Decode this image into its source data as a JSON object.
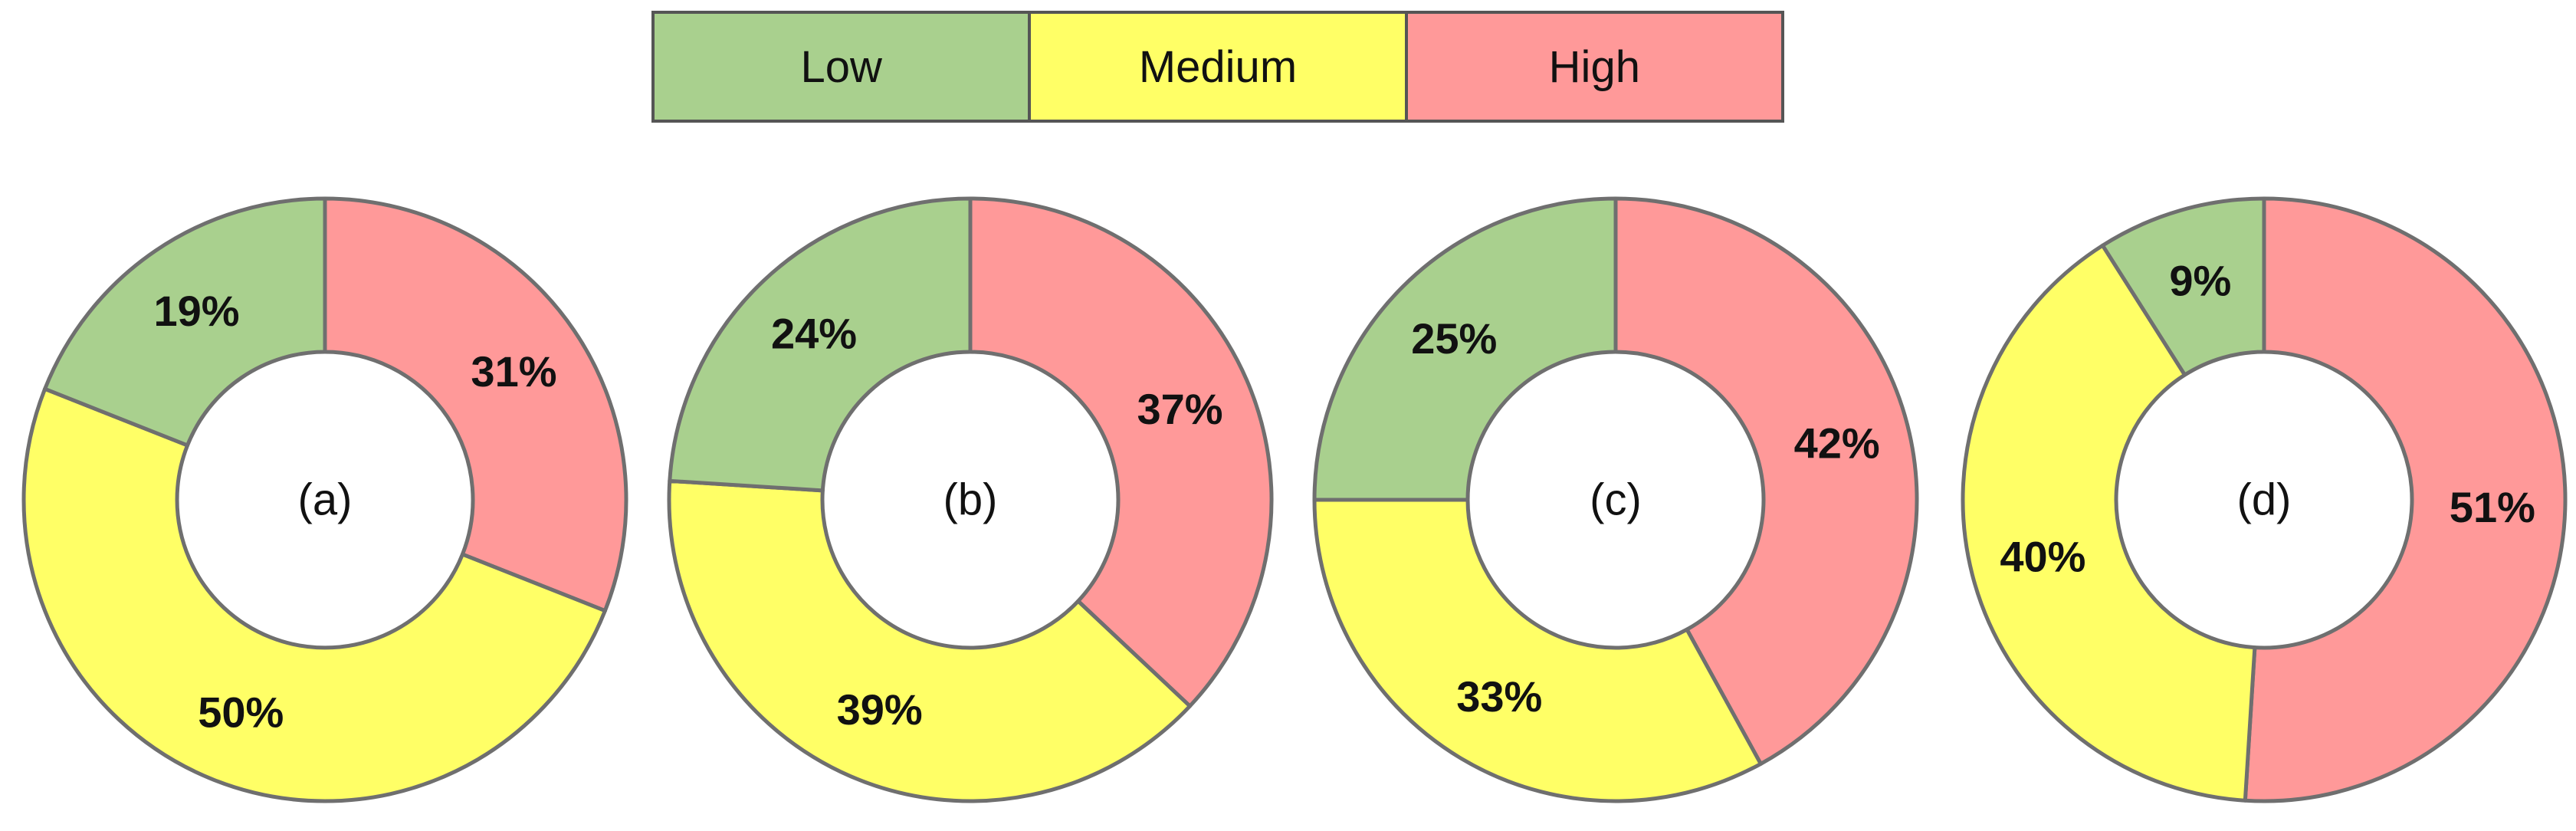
{
  "chart_data": {
    "type": "pie",
    "legend": {
      "position": "top-center",
      "entries": [
        {
          "label": "Low",
          "color": "#a9d08e"
        },
        {
          "label": "Medium",
          "color": "#ffff66"
        },
        {
          "label": "High",
          "color": "#ff9999"
        }
      ]
    },
    "charts": [
      {
        "label": "(a)",
        "slices": [
          {
            "category": "High",
            "value": 31,
            "text": "31%"
          },
          {
            "category": "Medium",
            "value": 50,
            "text": "50%"
          },
          {
            "category": "Low",
            "value": 19,
            "text": "19%"
          }
        ]
      },
      {
        "label": "(b)",
        "slices": [
          {
            "category": "High",
            "value": 37,
            "text": "37%"
          },
          {
            "category": "Medium",
            "value": 39,
            "text": "39%"
          },
          {
            "category": "Low",
            "value": 24,
            "text": "24%"
          }
        ]
      },
      {
        "label": "(c)",
        "slices": [
          {
            "category": "High",
            "value": 42,
            "text": "42%"
          },
          {
            "category": "Medium",
            "value": 33,
            "text": "33%"
          },
          {
            "category": "Low",
            "value": 25,
            "text": "25%"
          }
        ]
      },
      {
        "label": "(d)",
        "slices": [
          {
            "category": "High",
            "value": 51,
            "text": "51%"
          },
          {
            "category": "Medium",
            "value": 40,
            "text": "40%"
          },
          {
            "category": "Low",
            "value": 9,
            "text": "9%"
          }
        ]
      }
    ]
  }
}
